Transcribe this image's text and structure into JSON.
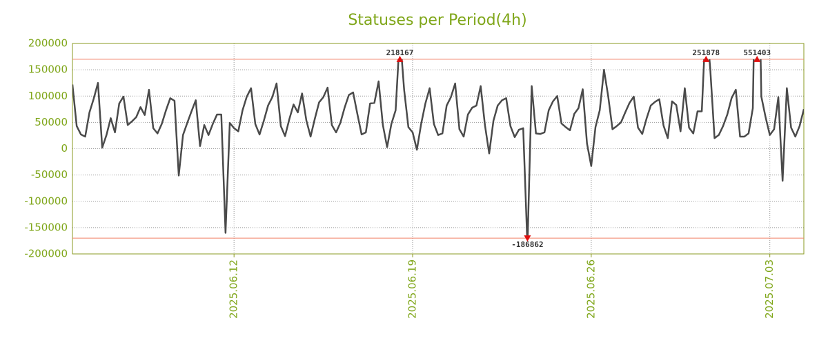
{
  "chart_data": {
    "type": "line",
    "title": "Statuses per Period(4h)",
    "categories": [
      null,
      null,
      null,
      null,
      null,
      null,
      null,
      null,
      null,
      null,
      null,
      null,
      null,
      null,
      null,
      null,
      null,
      null,
      null,
      null,
      null,
      null,
      null,
      null,
      null,
      null,
      null,
      null,
      null,
      null,
      null,
      null,
      null,
      null,
      null,
      null,
      null,
      null,
      "2025.06.12",
      null,
      null,
      null,
      null,
      null,
      null,
      null,
      null,
      null,
      null,
      null,
      null,
      null,
      null,
      null,
      null,
      null,
      null,
      null,
      null,
      null,
      null,
      null,
      null,
      null,
      null,
      null,
      null,
      null,
      null,
      null,
      null,
      null,
      null,
      null,
      null,
      null,
      null,
      null,
      null,
      null,
      "2025.06.19",
      null,
      null,
      null,
      null,
      null,
      null,
      null,
      null,
      null,
      null,
      null,
      null,
      null,
      null,
      null,
      null,
      null,
      null,
      null,
      null,
      null,
      null,
      null,
      null,
      null,
      null,
      null,
      null,
      null,
      null,
      null,
      null,
      null,
      null,
      null,
      null,
      null,
      null,
      null,
      null,
      null,
      "2025.06.26",
      null,
      null,
      null,
      null,
      null,
      null,
      null,
      null,
      null,
      null,
      null,
      null,
      null,
      null,
      null,
      null,
      null,
      null,
      null,
      null,
      null,
      null,
      null,
      null,
      null,
      null,
      null,
      null,
      null,
      null,
      null,
      null,
      null,
      null,
      null,
      null,
      null,
      null,
      null,
      null,
      null,
      "2025.07.03",
      null,
      null,
      null,
      null,
      null,
      null,
      null,
      null
    ],
    "values": [
      122000,
      43000,
      27000,
      23000,
      69000,
      95000,
      125000,
      2000,
      26000,
      58000,
      31000,
      86000,
      99000,
      45000,
      52000,
      60000,
      79000,
      64000,
      112000,
      39000,
      29000,
      47000,
      73000,
      96000,
      91000,
      -51000,
      26000,
      49000,
      71000,
      92000,
      5000,
      45000,
      26000,
      47000,
      65000,
      65000,
      -160000,
      49000,
      39000,
      33000,
      73000,
      99000,
      115000,
      47000,
      27000,
      53000,
      82000,
      98000,
      124000,
      43000,
      24000,
      56000,
      84000,
      69000,
      105000,
      54000,
      23000,
      57000,
      88000,
      98000,
      116000,
      45000,
      31000,
      49000,
      78000,
      102000,
      107000,
      66000,
      27000,
      31000,
      86000,
      87000,
      128000,
      45000,
      3000,
      47000,
      73000,
      218167,
      112000,
      41000,
      31000,
      -2000,
      47000,
      86000,
      115000,
      47000,
      26000,
      29000,
      82000,
      98000,
      124000,
      37000,
      23000,
      65000,
      78000,
      82000,
      119000,
      45000,
      -9000,
      53000,
      82000,
      92000,
      96000,
      43000,
      22000,
      36000,
      39000,
      -186862,
      119000,
      29000,
      28000,
      31000,
      73000,
      90000,
      100000,
      48000,
      41000,
      35000,
      66000,
      77000,
      113000,
      10000,
      -33000,
      41000,
      73000,
      150000,
      99000,
      37000,
      43000,
      50000,
      69000,
      87000,
      99000,
      40000,
      28000,
      57000,
      82000,
      89000,
      94000,
      44000,
      20000,
      90000,
      83000,
      33000,
      115000,
      40000,
      29000,
      71000,
      71000,
      251878,
      150000,
      20000,
      26000,
      43000,
      65000,
      96000,
      112000,
      23000,
      23000,
      29000,
      77000,
      551403,
      99000,
      60000,
      26000,
      37000,
      98000,
      -61000,
      115000,
      40000,
      23000,
      43000,
      75000
    ],
    "color": "#4a4a4a",
    "ylim": [
      -200000,
      200000
    ],
    "yticks": [
      200000,
      150000,
      100000,
      50000,
      0,
      -50000,
      -100000,
      -150000,
      -200000
    ],
    "threshold_lines": [
      170000,
      -170000
    ],
    "threshold_color": "#f08068",
    "marker_color": "#e01010",
    "grid": true
  }
}
